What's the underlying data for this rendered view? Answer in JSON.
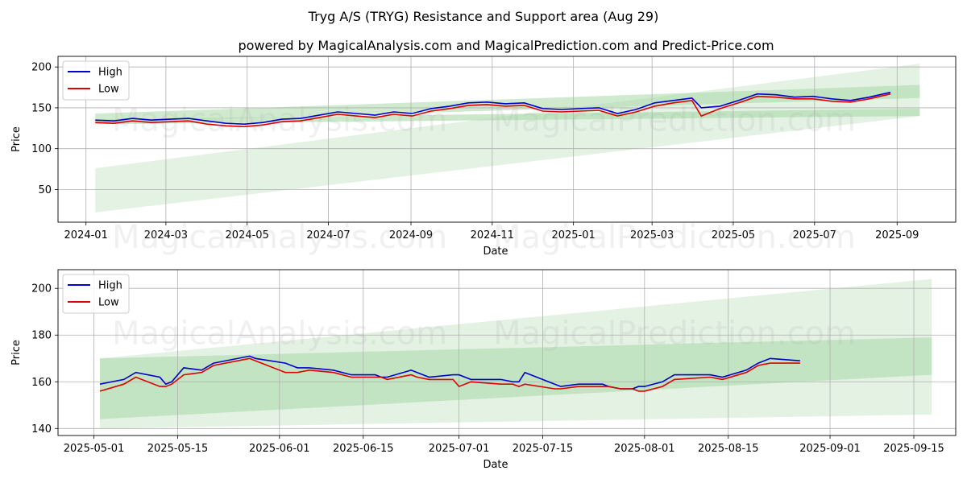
{
  "figure": {
    "title": "Tryg A/S (TRYG) Resistance and Support area (Aug 29)",
    "subtitle": "powered by MagicalAnalysis.com and MagicalPrediction.com and Predict-Price.com",
    "watermarks": [
      "MagicalAnalysis.com",
      "MagicalPrediction.com"
    ]
  },
  "colors": {
    "high": "#0000cc",
    "low": "#dd0000",
    "band_light": "#c8e6c8",
    "band_dark": "#a8d8a8",
    "grid": "#b0b0b0"
  },
  "chart_data": [
    {
      "type": "line",
      "xlabel": "Date",
      "ylabel": "Price",
      "grid": true,
      "legend": "top-left",
      "x_ticks": [
        "2024-01",
        "2024-03",
        "2024-05",
        "2024-07",
        "2024-09",
        "2024-11",
        "2025-01",
        "2025-03",
        "2025-05",
        "2025-07",
        "2025-09"
      ],
      "y_ticks": [
        50,
        100,
        150,
        200
      ],
      "ylim": [
        10,
        213
      ],
      "xlim": [
        "2023-12-11",
        "2025-10-15"
      ],
      "series": [
        {
          "name": "High",
          "x": [
            "2024-01-08",
            "2024-01-22",
            "2024-02-05",
            "2024-02-19",
            "2024-03-04",
            "2024-03-18",
            "2024-04-01",
            "2024-04-15",
            "2024-04-29",
            "2024-05-13",
            "2024-05-27",
            "2024-06-10",
            "2024-06-24",
            "2024-07-08",
            "2024-07-22",
            "2024-08-05",
            "2024-08-19",
            "2024-09-02",
            "2024-09-16",
            "2024-09-30",
            "2024-10-14",
            "2024-10-28",
            "2024-11-11",
            "2024-11-25",
            "2024-12-09",
            "2024-12-23",
            "2025-01-06",
            "2025-01-20",
            "2025-02-03",
            "2025-02-17",
            "2025-03-03",
            "2025-03-17",
            "2025-03-31",
            "2025-04-07",
            "2025-04-21",
            "2025-05-05",
            "2025-05-19",
            "2025-06-02",
            "2025-06-16",
            "2025-06-30",
            "2025-07-14",
            "2025-07-28",
            "2025-08-11",
            "2025-08-27"
          ],
          "values": [
            135,
            134,
            137,
            135,
            136,
            137,
            134,
            131,
            130,
            132,
            136,
            137,
            141,
            145,
            143,
            141,
            145,
            143,
            149,
            152,
            156,
            157,
            155,
            156,
            149,
            148,
            149,
            150,
            143,
            148,
            156,
            159,
            162,
            150,
            152,
            159,
            167,
            166,
            163,
            164,
            161,
            159,
            163,
            169
          ]
        },
        {
          "name": "Low",
          "x": [
            "2024-01-08",
            "2024-01-22",
            "2024-02-05",
            "2024-02-19",
            "2024-03-04",
            "2024-03-18",
            "2024-04-01",
            "2024-04-15",
            "2024-04-29",
            "2024-05-13",
            "2024-05-27",
            "2024-06-10",
            "2024-06-24",
            "2024-07-08",
            "2024-07-22",
            "2024-08-05",
            "2024-08-19",
            "2024-09-02",
            "2024-09-16",
            "2024-09-30",
            "2024-10-14",
            "2024-10-28",
            "2024-11-11",
            "2024-11-25",
            "2024-12-09",
            "2024-12-23",
            "2025-01-06",
            "2025-01-20",
            "2025-02-03",
            "2025-02-17",
            "2025-03-03",
            "2025-03-17",
            "2025-03-31",
            "2025-04-07",
            "2025-04-21",
            "2025-05-05",
            "2025-05-19",
            "2025-06-02",
            "2025-06-16",
            "2025-06-30",
            "2025-07-14",
            "2025-07-28",
            "2025-08-11",
            "2025-08-27"
          ],
          "values": [
            132,
            131,
            134,
            132,
            133,
            134,
            130,
            128,
            127,
            129,
            133,
            134,
            138,
            142,
            140,
            138,
            142,
            140,
            146,
            149,
            153,
            154,
            152,
            153,
            146,
            145,
            146,
            147,
            140,
            145,
            152,
            156,
            159,
            140,
            149,
            156,
            164,
            163,
            161,
            161,
            158,
            157,
            161,
            167
          ]
        }
      ],
      "bands": [
        {
          "x": [
            "2024-01-08",
            "2025-09-18"
          ],
          "lower": [
            22,
            140
          ],
          "upper": [
            76,
            204
          ]
        },
        {
          "x": [
            "2024-01-08",
            "2025-09-18"
          ],
          "lower": [
            132,
            162
          ],
          "upper": [
            143,
            178
          ]
        },
        {
          "x": [
            "2024-01-08",
            "2025-09-18"
          ],
          "lower": [
            130,
            140
          ],
          "upper": [
            136,
            149
          ]
        }
      ]
    },
    {
      "type": "line",
      "xlabel": "Date",
      "ylabel": "Price",
      "grid": true,
      "legend": "top-left",
      "x_ticks": [
        "2025-05-01",
        "2025-05-15",
        "2025-06-01",
        "2025-06-15",
        "2025-07-01",
        "2025-07-15",
        "2025-08-01",
        "2025-08-15",
        "2025-09-01",
        "2025-09-15"
      ],
      "y_ticks": [
        140,
        160,
        180,
        200
      ],
      "ylim": [
        137,
        208
      ],
      "xlim": [
        "2025-04-25",
        "2025-09-22"
      ],
      "series": [
        {
          "name": "High",
          "x": [
            "2025-05-02",
            "2025-05-06",
            "2025-05-08",
            "2025-05-12",
            "2025-05-13",
            "2025-05-14",
            "2025-05-16",
            "2025-05-19",
            "2025-05-21",
            "2025-05-27",
            "2025-05-28",
            "2025-06-02",
            "2025-06-03",
            "2025-06-04",
            "2025-06-06",
            "2025-06-10",
            "2025-06-13",
            "2025-06-17",
            "2025-06-18",
            "2025-06-19",
            "2025-06-23",
            "2025-06-24",
            "2025-06-26",
            "2025-06-30",
            "2025-07-01",
            "2025-07-03",
            "2025-07-08",
            "2025-07-10",
            "2025-07-11",
            "2025-07-12",
            "2025-07-17",
            "2025-07-18",
            "2025-07-21",
            "2025-07-25",
            "2025-07-26",
            "2025-07-28",
            "2025-07-30",
            "2025-07-31",
            "2025-08-01",
            "2025-08-04",
            "2025-08-06",
            "2025-08-12",
            "2025-08-14",
            "2025-08-18",
            "2025-08-20",
            "2025-08-22",
            "2025-08-27"
          ],
          "values": [
            159,
            161,
            164,
            162,
            159,
            160,
            166,
            165,
            168,
            171,
            170,
            168,
            167,
            166,
            166,
            165,
            163,
            163,
            162,
            162,
            165,
            164,
            162,
            163,
            163,
            161,
            161,
            160,
            160,
            164,
            159,
            158,
            159,
            159,
            158,
            157,
            157,
            158,
            158,
            160,
            163,
            163,
            162,
            165,
            168,
            170,
            169
          ]
        },
        {
          "name": "Low",
          "x": [
            "2025-05-02",
            "2025-05-06",
            "2025-05-08",
            "2025-05-12",
            "2025-05-13",
            "2025-05-14",
            "2025-05-16",
            "2025-05-19",
            "2025-05-21",
            "2025-05-27",
            "2025-05-28",
            "2025-06-02",
            "2025-06-03",
            "2025-06-04",
            "2025-06-06",
            "2025-06-10",
            "2025-06-13",
            "2025-06-17",
            "2025-06-18",
            "2025-06-19",
            "2025-06-23",
            "2025-06-24",
            "2025-06-26",
            "2025-06-30",
            "2025-07-01",
            "2025-07-03",
            "2025-07-08",
            "2025-07-10",
            "2025-07-11",
            "2025-07-12",
            "2025-07-17",
            "2025-07-18",
            "2025-07-21",
            "2025-07-25",
            "2025-07-26",
            "2025-07-28",
            "2025-07-30",
            "2025-07-31",
            "2025-08-01",
            "2025-08-04",
            "2025-08-06",
            "2025-08-12",
            "2025-08-14",
            "2025-08-18",
            "2025-08-20",
            "2025-08-22",
            "2025-08-27"
          ],
          "values": [
            156,
            159,
            162,
            158,
            158,
            159,
            163,
            164,
            167,
            170,
            169,
            164,
            164,
            164,
            165,
            164,
            162,
            162,
            162,
            161,
            163,
            162,
            161,
            161,
            158,
            160,
            159,
            159,
            158,
            159,
            157,
            157,
            158,
            158,
            158,
            157,
            157,
            156,
            156,
            158,
            161,
            162,
            161,
            164,
            167,
            168,
            168
          ]
        }
      ],
      "bands": [
        {
          "x": [
            "2025-05-02",
            "2025-09-18"
          ],
          "lower": [
            140,
            146
          ],
          "upper": [
            170,
            204
          ]
        },
        {
          "x": [
            "2025-05-02",
            "2025-09-18"
          ],
          "lower": [
            144,
            163
          ],
          "upper": [
            170,
            179
          ]
        }
      ]
    }
  ]
}
